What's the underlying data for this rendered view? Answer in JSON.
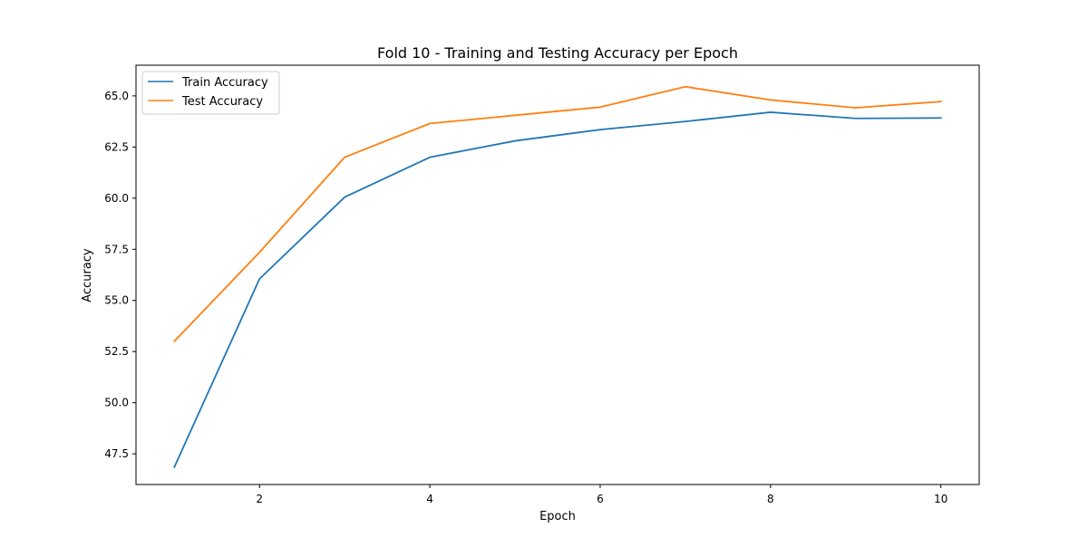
{
  "chart_data": {
    "type": "line",
    "title": "Fold 10 - Training and Testing Accuracy per Epoch",
    "xlabel": "Epoch",
    "ylabel": "Accuracy",
    "x": [
      1,
      2,
      3,
      4,
      5,
      6,
      7,
      8,
      9,
      10
    ],
    "xlim": [
      0.55,
      10.45
    ],
    "ylim": [
      46.0,
      66.5
    ],
    "xticks": [
      2,
      4,
      6,
      8,
      10
    ],
    "xtick_labels": [
      "2",
      "4",
      "6",
      "8",
      "10"
    ],
    "yticks": [
      47.5,
      50.0,
      52.5,
      55.0,
      57.5,
      60.0,
      62.5,
      65.0
    ],
    "ytick_labels": [
      "47.5",
      "50.0",
      "52.5",
      "55.0",
      "57.5",
      "60.0",
      "62.5",
      "65.0"
    ],
    "grid": false,
    "legend_position": "top-left",
    "series": [
      {
        "name": "Train Accuracy",
        "color": "#1f77b4",
        "values": [
          46.85,
          56.05,
          60.05,
          62.0,
          62.8,
          63.35,
          63.75,
          64.2,
          63.9,
          63.92
        ]
      },
      {
        "name": "Test Accuracy",
        "color": "#ff7f0e",
        "values": [
          53.0,
          57.35,
          62.0,
          63.65,
          64.05,
          64.45,
          65.45,
          64.8,
          64.42,
          64.72
        ]
      }
    ]
  }
}
